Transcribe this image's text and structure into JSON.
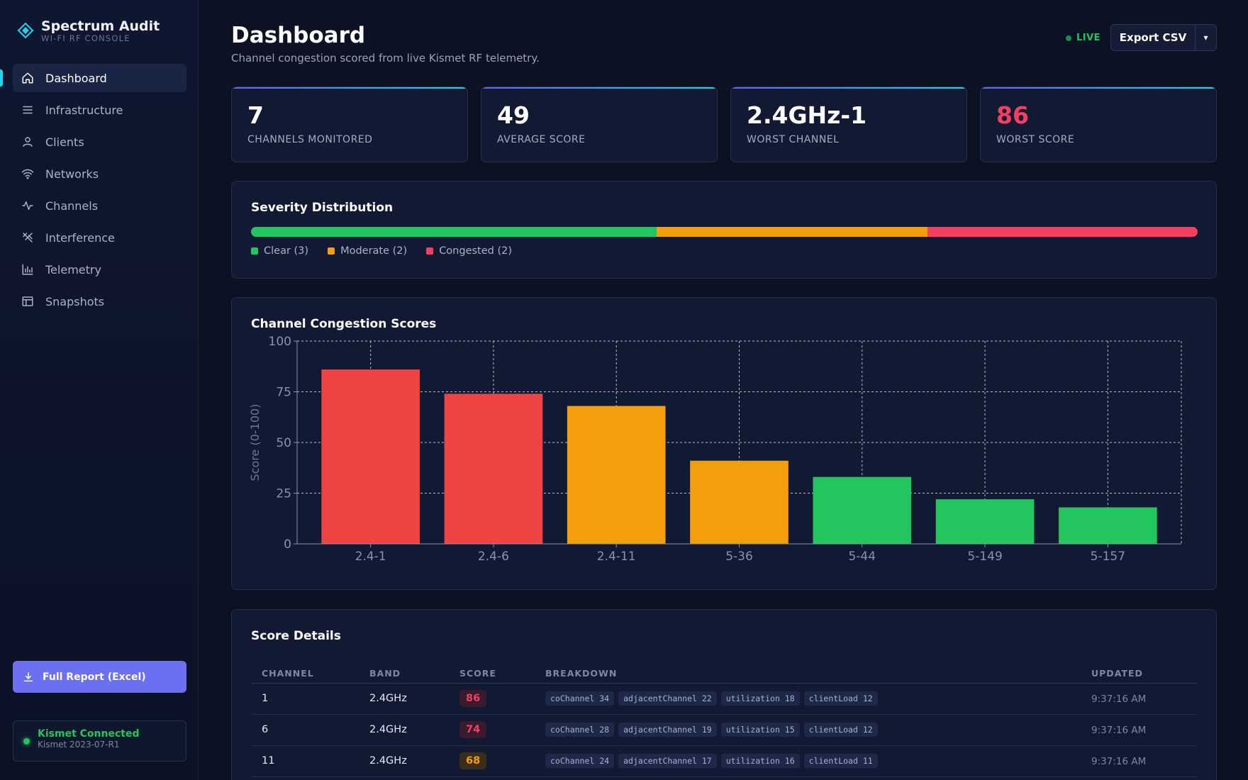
{
  "brand": {
    "name": "Spectrum Audit",
    "subtitle": "WI-FI RF CONSOLE",
    "logo_icon": "diamond-logo-icon"
  },
  "sidebar": {
    "items": [
      {
        "label": "Dashboard",
        "icon": "home-icon",
        "active": true
      },
      {
        "label": "Infrastructure",
        "icon": "menu-lines-icon"
      },
      {
        "label": "Clients",
        "icon": "user-icon"
      },
      {
        "label": "Networks",
        "icon": "wifi-icon"
      },
      {
        "label": "Channels",
        "icon": "pulse-icon"
      },
      {
        "label": "Interference",
        "icon": "antenna-icon"
      },
      {
        "label": "Telemetry",
        "icon": "bar-chart-icon"
      },
      {
        "label": "Snapshots",
        "icon": "layout-icon"
      }
    ],
    "full_report_label": "Full Report (Excel)",
    "status": {
      "title": "Kismet Connected",
      "version": "Kismet 2023-07-R1"
    }
  },
  "header": {
    "title": "Dashboard",
    "subtitle": "Channel congestion scored from live Kismet RF telemetry.",
    "live_label": "LIVE",
    "export_label": "Export CSV",
    "export_caret": "▾"
  },
  "stats": [
    {
      "value": "7",
      "label": "CHANNELS MONITORED"
    },
    {
      "value": "49",
      "label": "AVERAGE SCORE"
    },
    {
      "value": "2.4GHz-1",
      "label": "WORST CHANNEL"
    },
    {
      "value": "86",
      "label": "WORST SCORE",
      "highlight": true
    }
  ],
  "severity": {
    "title": "Severity Distribution",
    "segments": [
      {
        "label": "Clear (3)",
        "count": 3,
        "color": "#22c55e"
      },
      {
        "label": "Moderate (2)",
        "count": 2,
        "color": "#f59e0b"
      },
      {
        "label": "Congested (2)",
        "count": 2,
        "color": "#f43f5e"
      }
    ]
  },
  "chart_title": "Channel Congestion Scores",
  "chart_data": {
    "type": "bar",
    "categories": [
      "2.4-1",
      "2.4-6",
      "2.4-11",
      "5-36",
      "5-44",
      "5-149",
      "5-157"
    ],
    "values": [
      86,
      74,
      68,
      41,
      33,
      22,
      18
    ],
    "colors": [
      "#ef4444",
      "#ef4444",
      "#f59e0b",
      "#f59e0b",
      "#22c55e",
      "#22c55e",
      "#22c55e"
    ],
    "ylabel": "Score (0-100)",
    "xlabel": "",
    "ylim": [
      0,
      100
    ],
    "yticks": [
      0,
      25,
      50,
      75,
      100
    ],
    "grid": true
  },
  "table": {
    "title": "Score Details",
    "columns": [
      "CHANNEL",
      "BAND",
      "SCORE",
      "BREAKDOWN",
      "UPDATED"
    ],
    "rows": [
      {
        "channel": "1",
        "band": "2.4GHz",
        "score": "86",
        "score_color": "#f43f5e",
        "score_bg": "#3a1a2e",
        "breakdown": [
          "coChannel 34",
          "adjacentChannel 22",
          "utilization 18",
          "clientLoad 12"
        ],
        "updated": "9:37:16 AM"
      },
      {
        "channel": "6",
        "band": "2.4GHz",
        "score": "74",
        "score_color": "#f43f5e",
        "score_bg": "#3a1a2e",
        "breakdown": [
          "coChannel 28",
          "adjacentChannel 19",
          "utilization 15",
          "clientLoad 12"
        ],
        "updated": "9:37:16 AM"
      },
      {
        "channel": "11",
        "band": "2.4GHz",
        "score": "68",
        "score_color": "#f59e0b",
        "score_bg": "#3a2d1a",
        "breakdown": [
          "coChannel 24",
          "adjacentChannel 17",
          "utilization 16",
          "clientLoad 11"
        ],
        "updated": "9:37:16 AM"
      }
    ]
  }
}
